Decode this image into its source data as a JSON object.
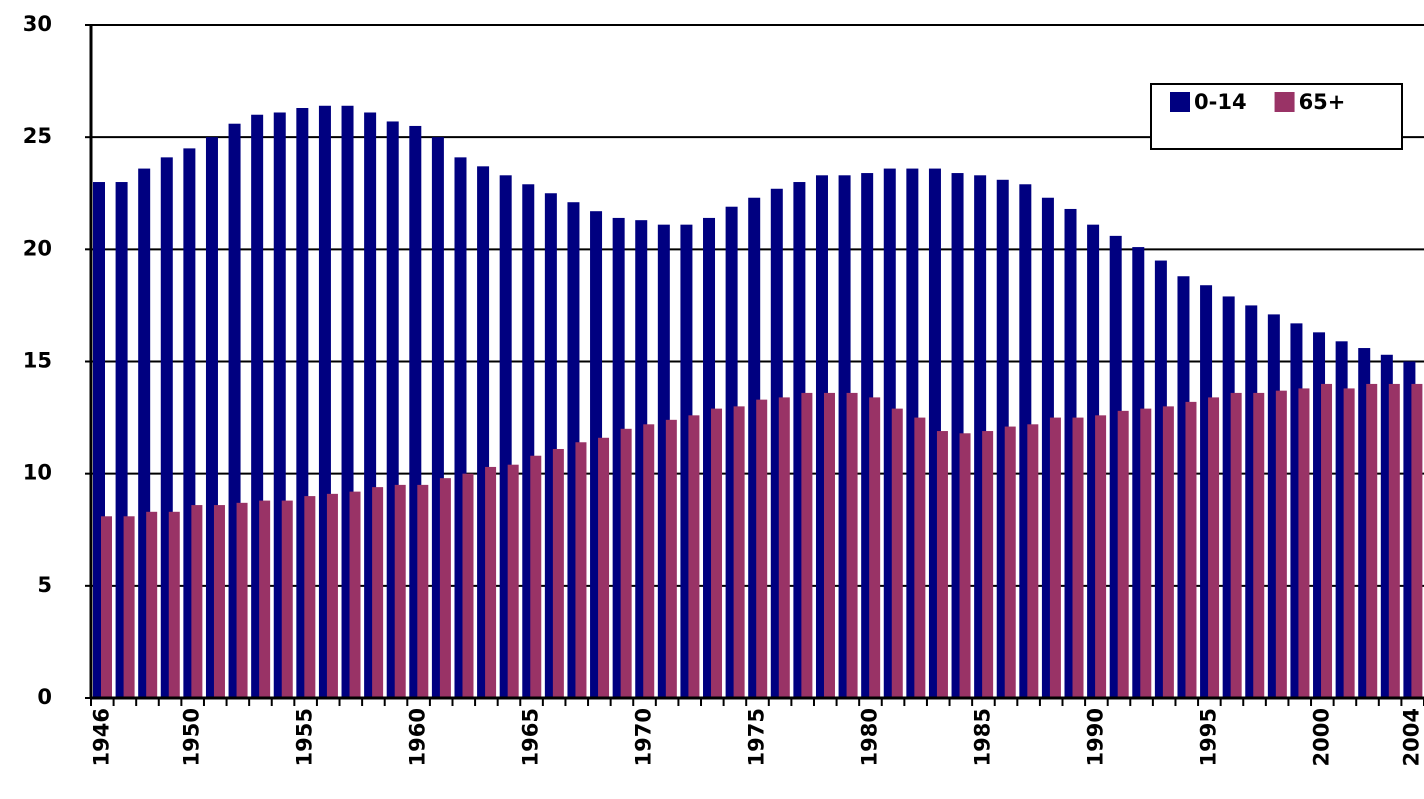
{
  "chart_data": {
    "type": "bar",
    "categories": [
      "1946",
      null,
      null,
      null,
      "1950",
      null,
      null,
      null,
      null,
      "1955",
      null,
      null,
      null,
      null,
      "1960",
      null,
      null,
      null,
      null,
      "1965",
      null,
      null,
      null,
      null,
      "1970",
      null,
      null,
      null,
      null,
      "1975",
      null,
      null,
      null,
      null,
      "1980",
      null,
      null,
      null,
      null,
      "1985",
      null,
      null,
      null,
      null,
      "1990",
      null,
      null,
      null,
      null,
      "1995",
      null,
      null,
      null,
      null,
      "2000",
      null,
      null,
      null,
      "2004"
    ],
    "series": [
      {
        "name": "0-14",
        "color": "#000080",
        "values": [
          23.0,
          23.0,
          23.6,
          24.1,
          24.5,
          25.0,
          25.6,
          26.0,
          26.1,
          26.3,
          26.4,
          26.4,
          26.1,
          25.7,
          25.5,
          25.0,
          24.1,
          23.7,
          23.3,
          22.9,
          22.5,
          22.1,
          21.7,
          21.4,
          21.3,
          21.1,
          21.1,
          21.4,
          21.9,
          22.3,
          22.7,
          23.0,
          23.3,
          23.3,
          23.4,
          23.6,
          23.6,
          23.6,
          23.4,
          23.3,
          23.1,
          22.9,
          22.3,
          21.8,
          21.1,
          20.6,
          20.1,
          19.5,
          18.8,
          18.4,
          17.9,
          17.5,
          17.1,
          16.7,
          16.3,
          15.9,
          15.6,
          15.3,
          15.0
        ]
      },
      {
        "name": "65+",
        "color": "#993366",
        "values": [
          8.1,
          8.1,
          8.3,
          8.3,
          8.6,
          8.6,
          8.7,
          8.8,
          8.8,
          9.0,
          9.1,
          9.2,
          9.4,
          9.5,
          9.5,
          9.8,
          10.0,
          10.3,
          10.4,
          10.8,
          11.1,
          11.4,
          11.6,
          12.0,
          12.2,
          12.4,
          12.6,
          12.9,
          13.0,
          13.3,
          13.4,
          13.6,
          13.6,
          13.6,
          13.4,
          12.9,
          12.5,
          11.9,
          11.8,
          11.9,
          12.1,
          12.2,
          12.5,
          12.5,
          12.6,
          12.8,
          12.9,
          13.0,
          13.2,
          13.4,
          13.6,
          13.6,
          13.7,
          13.8,
          14.0,
          13.8,
          14.0,
          14.0,
          14.0
        ]
      }
    ],
    "ylim": [
      0,
      30
    ],
    "yticks": [
      0,
      5,
      10,
      15,
      20,
      25,
      30
    ],
    "grid": true,
    "legend": "top-right"
  }
}
